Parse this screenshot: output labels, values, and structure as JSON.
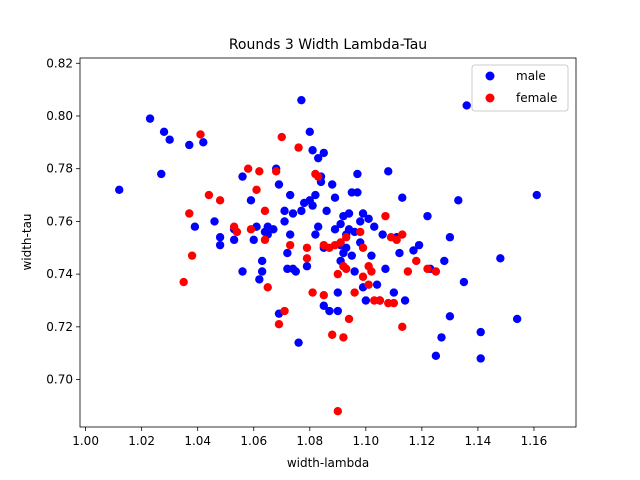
{
  "chart_data": {
    "type": "scatter",
    "title": "Rounds 3 Width Lambda-Tau",
    "xlabel": "width-lambda",
    "ylabel": "width-tau",
    "xlim": [
      0.998,
      1.175
    ],
    "ylim": [
      0.682,
      0.822
    ],
    "xticks": [
      "1.00",
      "1.02",
      "1.04",
      "1.06",
      "1.08",
      "1.10",
      "1.12",
      "1.14",
      "1.16"
    ],
    "yticks": [
      "0.70",
      "0.72",
      "0.74",
      "0.76",
      "0.78",
      "0.80",
      "0.82"
    ],
    "grid": false,
    "legend_position": "top-right",
    "series": [
      {
        "name": "male",
        "color": "#0000ff",
        "points": [
          [
            1.012,
            0.772
          ],
          [
            1.023,
            0.799
          ],
          [
            1.027,
            0.778
          ],
          [
            1.028,
            0.794
          ],
          [
            1.03,
            0.791
          ],
          [
            1.037,
            0.789
          ],
          [
            1.039,
            0.758
          ],
          [
            1.042,
            0.79
          ],
          [
            1.046,
            0.76
          ],
          [
            1.048,
            0.751
          ],
          [
            1.048,
            0.754
          ],
          [
            1.053,
            0.753
          ],
          [
            1.053,
            0.757
          ],
          [
            1.056,
            0.741
          ],
          [
            1.056,
            0.777
          ],
          [
            1.059,
            0.768
          ],
          [
            1.06,
            0.753
          ],
          [
            1.061,
            0.758
          ],
          [
            1.062,
            0.738
          ],
          [
            1.063,
            0.741
          ],
          [
            1.063,
            0.745
          ],
          [
            1.064,
            0.756
          ],
          [
            1.065,
            0.758
          ],
          [
            1.065,
            0.755
          ],
          [
            1.067,
            0.757
          ],
          [
            1.068,
            0.78
          ],
          [
            1.069,
            0.774
          ],
          [
            1.069,
            0.725
          ],
          [
            1.071,
            0.76
          ],
          [
            1.071,
            0.764
          ],
          [
            1.072,
            0.742
          ],
          [
            1.072,
            0.748
          ],
          [
            1.073,
            0.77
          ],
          [
            1.073,
            0.755
          ],
          [
            1.074,
            0.742
          ],
          [
            1.074,
            0.763
          ],
          [
            1.075,
            0.741
          ],
          [
            1.076,
            0.714
          ],
          [
            1.077,
            0.764
          ],
          [
            1.077,
            0.806
          ],
          [
            1.078,
            0.767
          ],
          [
            1.079,
            0.743
          ],
          [
            1.08,
            0.768
          ],
          [
            1.08,
            0.794
          ],
          [
            1.081,
            0.766
          ],
          [
            1.081,
            0.787
          ],
          [
            1.082,
            0.77
          ],
          [
            1.082,
            0.755
          ],
          [
            1.083,
            0.784
          ],
          [
            1.083,
            0.758
          ],
          [
            1.084,
            0.777
          ],
          [
            1.084,
            0.775
          ],
          [
            1.085,
            0.786
          ],
          [
            1.085,
            0.75
          ],
          [
            1.085,
            0.728
          ],
          [
            1.086,
            0.764
          ],
          [
            1.087,
            0.726
          ],
          [
            1.088,
            0.774
          ],
          [
            1.089,
            0.757
          ],
          [
            1.089,
            0.769
          ],
          [
            1.09,
            0.733
          ],
          [
            1.09,
            0.726
          ],
          [
            1.091,
            0.759
          ],
          [
            1.091,
            0.751
          ],
          [
            1.091,
            0.745
          ],
          [
            1.092,
            0.762
          ],
          [
            1.092,
            0.748
          ],
          [
            1.093,
            0.755
          ],
          [
            1.093,
            0.75
          ],
          [
            1.094,
            0.763
          ],
          [
            1.094,
            0.757
          ],
          [
            1.095,
            0.771
          ],
          [
            1.095,
            0.747
          ],
          [
            1.096,
            0.756
          ],
          [
            1.096,
            0.741
          ],
          [
            1.097,
            0.778
          ],
          [
            1.097,
            0.771
          ],
          [
            1.098,
            0.76
          ],
          [
            1.098,
            0.752
          ],
          [
            1.099,
            0.763
          ],
          [
            1.099,
            0.735
          ],
          [
            1.1,
            0.73
          ],
          [
            1.101,
            0.761
          ],
          [
            1.102,
            0.747
          ],
          [
            1.103,
            0.758
          ],
          [
            1.104,
            0.736
          ],
          [
            1.105,
            0.73
          ],
          [
            1.106,
            0.755
          ],
          [
            1.107,
            0.742
          ],
          [
            1.108,
            0.779
          ],
          [
            1.11,
            0.733
          ],
          [
            1.111,
            0.754
          ],
          [
            1.112,
            0.748
          ],
          [
            1.113,
            0.769
          ],
          [
            1.114,
            0.73
          ],
          [
            1.117,
            0.749
          ],
          [
            1.119,
            0.751
          ],
          [
            1.122,
            0.762
          ],
          [
            1.123,
            0.742
          ],
          [
            1.125,
            0.709
          ],
          [
            1.127,
            0.716
          ],
          [
            1.128,
            0.745
          ],
          [
            1.13,
            0.754
          ],
          [
            1.13,
            0.724
          ],
          [
            1.133,
            0.768
          ],
          [
            1.135,
            0.737
          ],
          [
            1.136,
            0.804
          ],
          [
            1.141,
            0.718
          ],
          [
            1.141,
            0.708
          ],
          [
            1.148,
            0.746
          ],
          [
            1.154,
            0.723
          ],
          [
            1.161,
            0.77
          ]
        ]
      },
      {
        "name": "female",
        "color": "#ff0000",
        "points": [
          [
            1.035,
            0.737
          ],
          [
            1.037,
            0.763
          ],
          [
            1.038,
            0.747
          ],
          [
            1.041,
            0.793
          ],
          [
            1.044,
            0.77
          ],
          [
            1.048,
            0.768
          ],
          [
            1.053,
            0.758
          ],
          [
            1.054,
            0.756
          ],
          [
            1.058,
            0.78
          ],
          [
            1.059,
            0.757
          ],
          [
            1.061,
            0.772
          ],
          [
            1.062,
            0.779
          ],
          [
            1.064,
            0.764
          ],
          [
            1.064,
            0.753
          ],
          [
            1.065,
            0.735
          ],
          [
            1.068,
            0.779
          ],
          [
            1.069,
            0.721
          ],
          [
            1.07,
            0.792
          ],
          [
            1.071,
            0.726
          ],
          [
            1.073,
            0.751
          ],
          [
            1.076,
            0.788
          ],
          [
            1.079,
            0.746
          ],
          [
            1.079,
            0.75
          ],
          [
            1.081,
            0.733
          ],
          [
            1.082,
            0.778
          ],
          [
            1.083,
            0.777
          ],
          [
            1.085,
            0.751
          ],
          [
            1.085,
            0.732
          ],
          [
            1.087,
            0.75
          ],
          [
            1.088,
            0.717
          ],
          [
            1.089,
            0.751
          ],
          [
            1.09,
            0.688
          ],
          [
            1.09,
            0.74
          ],
          [
            1.091,
            0.752
          ],
          [
            1.092,
            0.743
          ],
          [
            1.092,
            0.716
          ],
          [
            1.093,
            0.754
          ],
          [
            1.093,
            0.742
          ],
          [
            1.094,
            0.723
          ],
          [
            1.096,
            0.733
          ],
          [
            1.098,
            0.756
          ],
          [
            1.099,
            0.75
          ],
          [
            1.099,
            0.739
          ],
          [
            1.101,
            0.743
          ],
          [
            1.101,
            0.736
          ],
          [
            1.102,
            0.741
          ],
          [
            1.103,
            0.73
          ],
          [
            1.105,
            0.73
          ],
          [
            1.107,
            0.762
          ],
          [
            1.108,
            0.729
          ],
          [
            1.109,
            0.754
          ],
          [
            1.11,
            0.729
          ],
          [
            1.111,
            0.753
          ],
          [
            1.113,
            0.755
          ],
          [
            1.113,
            0.72
          ],
          [
            1.115,
            0.741
          ],
          [
            1.118,
            0.745
          ],
          [
            1.122,
            0.742
          ],
          [
            1.125,
            0.741
          ]
        ]
      }
    ]
  }
}
